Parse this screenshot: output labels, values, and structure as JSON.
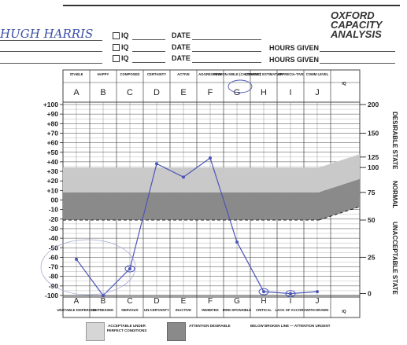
{
  "brand": {
    "line1": "OXFORD",
    "line2": "CAPACITY",
    "line3": "ANALYSIS"
  },
  "header": {
    "name_value": "HUGH HARRIS",
    "rows": [
      {
        "iq_label": "IQ",
        "date_label": "DATE",
        "hours_label": ""
      },
      {
        "iq_label": "IQ",
        "date_label": "DATE",
        "hours_label": "HOURS GIVEN"
      },
      {
        "iq_label": "IQ",
        "date_label": "DATE",
        "hours_label": "HOURS GIVEN"
      }
    ]
  },
  "columns": [
    {
      "letter": "A",
      "top": "STABLE",
      "bottom": "UNSTABLE DISPERSED"
    },
    {
      "letter": "B",
      "top": "HAPPY",
      "bottom": "DEPRESSED"
    },
    {
      "letter": "C",
      "top": "COMPOSED",
      "bottom": "NERVOUS"
    },
    {
      "letter": "D",
      "top": "CERTAINTY",
      "bottom": "UN-CERTAINTY"
    },
    {
      "letter": "E",
      "top": "ACTIVE",
      "bottom": "INACTIVE"
    },
    {
      "letter": "F",
      "top": "AGGRES-SIVE",
      "bottom": "INHIBITED"
    },
    {
      "letter": "G",
      "top": "RESPON-SIBLE (CAUSATIVE)",
      "bottom": "IRRE-SPONSIBLE"
    },
    {
      "letter": "H",
      "top": "CORRECT ESTIMATION",
      "bottom": "CRITICAL"
    },
    {
      "letter": "I",
      "top": "APPRECIA-TIVE",
      "bottom": "LACK OF ACCORD"
    },
    {
      "letter": "J",
      "top": "COMM LEVEL",
      "bottom": "WITH-DRAWN"
    }
  ],
  "iq_col_label": "IQ",
  "left_ticks": [
    "+100",
    "+90",
    "+80",
    "+70",
    "+60",
    "+50",
    "+40",
    "+30",
    "+20",
    "+10",
    "00",
    "-10",
    "-20",
    "-30",
    "-40",
    "-50",
    "-60",
    "-70",
    "-80",
    "-90",
    "-100"
  ],
  "right_ticks": [
    "200",
    "150",
    "125",
    "100",
    "75",
    "50",
    "25",
    "0"
  ],
  "right_labels": {
    "desirable": "DESIRABLE STATE",
    "normal": "NORMAL",
    "unacceptable": "UNACCEPTABLE STATE"
  },
  "legend": {
    "acceptable": "ACCEPTABLE UNDER PERFECT CONDITIONS",
    "attention": "ATTENTION DESIRABLE",
    "broken": "BELOW BROKEN LINE — ATTENTION URGENT"
  },
  "colors": {
    "light_band": "#c9c9c9",
    "dark_band": "#8a8a8a",
    "plot_line": "#4b55b8",
    "grid": "#444444"
  },
  "chart_data": {
    "type": "line",
    "categories": [
      "A",
      "B",
      "C",
      "D",
      "E",
      "F",
      "G",
      "H",
      "I",
      "J"
    ],
    "values": [
      -62,
      -100,
      -72,
      38,
      24,
      44,
      -44,
      -96,
      -98,
      -96
    ],
    "ylim": [
      -100,
      100
    ]
  }
}
